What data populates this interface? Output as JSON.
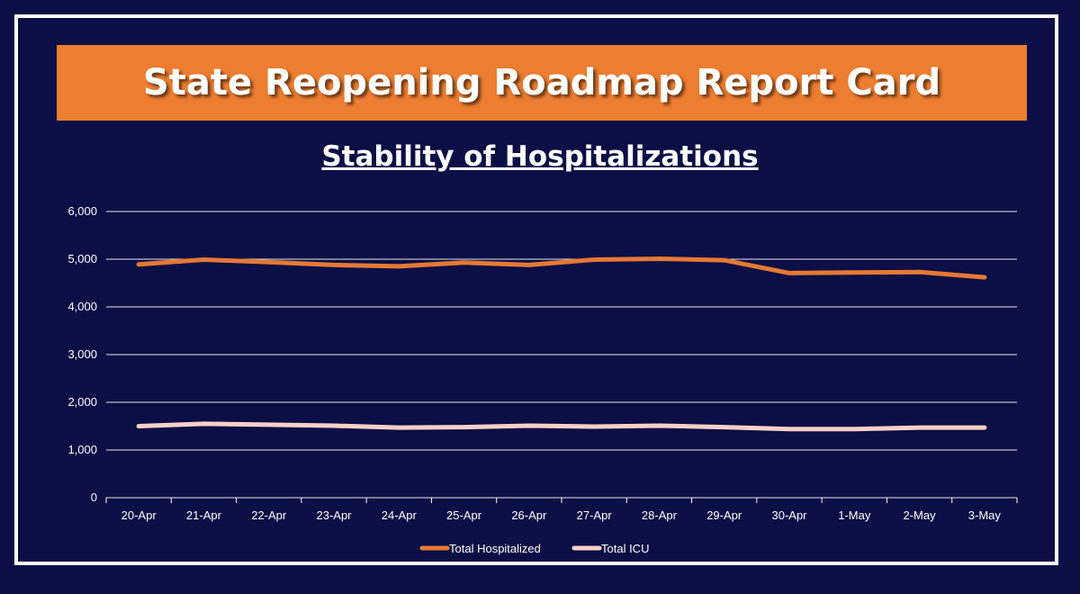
{
  "header": {
    "title": "State Reopening Roadmap Report Card"
  },
  "colors": {
    "background": "#0b0f45",
    "banner": "#ed7d31",
    "hospitalized": "#e57933",
    "icu": "#f8d0c8",
    "gridline": "#ffffff"
  },
  "chart_data": {
    "type": "line",
    "title": "Stability of Hospitalizations",
    "xlabel": "",
    "ylabel": "",
    "ylim": [
      0,
      6000
    ],
    "yticks": [
      0,
      1000,
      2000,
      3000,
      4000,
      5000,
      6000
    ],
    "ytick_labels": [
      "0",
      "1,000",
      "2,000",
      "3,000",
      "4,000",
      "5,000",
      "6,000"
    ],
    "grid": true,
    "legend_position": "bottom",
    "categories": [
      "20-Apr",
      "21-Apr",
      "22-Apr",
      "23-Apr",
      "24-Apr",
      "25-Apr",
      "26-Apr",
      "27-Apr",
      "28-Apr",
      "29-Apr",
      "30-Apr",
      "1-May",
      "2-May",
      "3-May"
    ],
    "series": [
      {
        "name": "Total Hospitalized",
        "color": "#e57933",
        "values": [
          4890,
          4990,
          4940,
          4880,
          4850,
          4930,
          4880,
          4990,
          5010,
          4980,
          4710,
          4720,
          4730,
          4620
        ]
      },
      {
        "name": "Total ICU",
        "color": "#f8d0c8",
        "values": [
          1500,
          1550,
          1530,
          1510,
          1470,
          1480,
          1510,
          1490,
          1510,
          1480,
          1440,
          1440,
          1470,
          1470
        ]
      }
    ]
  }
}
